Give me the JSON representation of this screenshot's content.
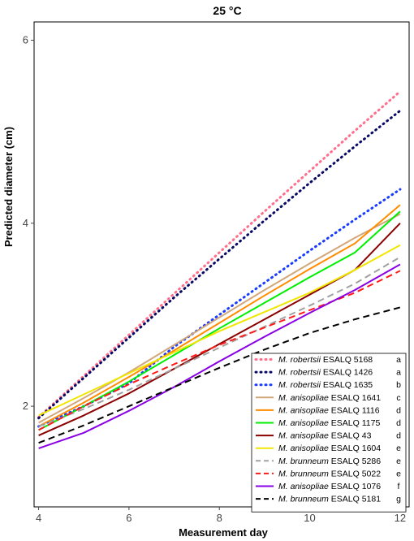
{
  "chart_data": {
    "type": "line",
    "title": "25 °C",
    "xlabel": "Measurement day",
    "ylabel": "Predicted diameter (cm)",
    "xlim": [
      3.9,
      12.2
    ],
    "ylim": [
      0.9,
      6.2
    ],
    "xticks": [
      4,
      6,
      8,
      10,
      12
    ],
    "yticks": [
      2,
      4,
      6
    ],
    "x": [
      4,
      5,
      6,
      7,
      8,
      9,
      10,
      11,
      12
    ],
    "grid": false,
    "legend_position": "bottom-right",
    "series": [
      {
        "genus": "M.",
        "species": "robertsii",
        "strain": "ESALQ 5168",
        "letter": "a",
        "color": "#ff6e8c",
        "style": "dotted",
        "values": [
          1.88,
          2.33,
          2.78,
          3.23,
          3.68,
          4.13,
          4.57,
          5.01,
          5.44
        ]
      },
      {
        "genus": "M.",
        "species": "robertsii",
        "strain": "ESALQ 1426",
        "letter": "a",
        "color": "#0a0a64",
        "style": "dotted",
        "values": [
          1.87,
          2.31,
          2.75,
          3.19,
          3.61,
          4.03,
          4.44,
          4.84,
          5.23
        ]
      },
      {
        "genus": "M.",
        "species": "robertsii",
        "strain": "ESALQ 1635",
        "letter": "b",
        "color": "#1a3cff",
        "style": "dotted",
        "values": [
          1.78,
          2.0,
          2.25,
          2.65,
          3.0,
          3.35,
          3.7,
          4.04,
          4.37
        ]
      },
      {
        "genus": "M.",
        "species": "anisopliae",
        "strain": "ESALQ 1641",
        "letter": "c",
        "color": "#d2a77a",
        "style": "solid",
        "values": [
          1.82,
          2.09,
          2.37,
          2.67,
          2.97,
          3.27,
          3.56,
          3.84,
          4.1
        ]
      },
      {
        "genus": "M.",
        "species": "anisopliae",
        "strain": "ESALQ 1116",
        "letter": "d",
        "color": "#ff8c00",
        "style": "solid",
        "values": [
          1.78,
          2.04,
          2.32,
          2.61,
          2.91,
          3.21,
          3.5,
          3.78,
          4.2
        ]
      },
      {
        "genus": "M.",
        "species": "anisopliae",
        "strain": "ESALQ 1175",
        "letter": "d",
        "color": "#00ee00",
        "style": "solid",
        "values": [
          1.74,
          2.0,
          2.27,
          2.56,
          2.85,
          3.13,
          3.41,
          3.68,
          4.13
        ]
      },
      {
        "genus": "M.",
        "species": "anisopliae",
        "strain": "ESALQ 43",
        "letter": "d",
        "color": "#8b0000",
        "style": "solid",
        "values": [
          1.68,
          1.9,
          2.14,
          2.41,
          2.68,
          2.95,
          3.22,
          3.49,
          4.0
        ]
      },
      {
        "genus": "M.",
        "species": "anisopliae",
        "strain": "ESALQ 1604",
        "letter": "e",
        "color": "#f0e600",
        "style": "solid",
        "values": [
          1.9,
          2.13,
          2.36,
          2.59,
          2.82,
          3.03,
          3.24,
          3.49,
          3.76
        ]
      },
      {
        "genus": "M.",
        "species": "brunneum",
        "strain": "ESALQ 5286",
        "letter": "e",
        "color": "#a0a0a0",
        "style": "dashed",
        "values": [
          1.78,
          1.97,
          2.18,
          2.41,
          2.64,
          2.87,
          3.1,
          3.34,
          3.63
        ]
      },
      {
        "genus": "M.",
        "species": "brunneum",
        "strain": "ESALQ 5022",
        "letter": "e",
        "color": "#ff1a1a",
        "style": "dashed",
        "values": [
          1.74,
          2.0,
          2.24,
          2.46,
          2.67,
          2.86,
          3.05,
          3.24,
          3.48
        ]
      },
      {
        "genus": "M.",
        "species": "anisopliae",
        "strain": "ESALQ 1076",
        "letter": "f",
        "color": "#8a00e6",
        "style": "solid",
        "values": [
          1.54,
          1.71,
          1.95,
          2.21,
          2.49,
          2.76,
          3.02,
          3.27,
          3.55
        ]
      },
      {
        "genus": "M.",
        "species": "brunneum",
        "strain": "ESALQ 5181",
        "letter": "g",
        "color": "#000000",
        "style": "dashed",
        "values": [
          1.6,
          1.79,
          2.0,
          2.21,
          2.42,
          2.62,
          2.8,
          2.95,
          3.08
        ]
      }
    ]
  }
}
